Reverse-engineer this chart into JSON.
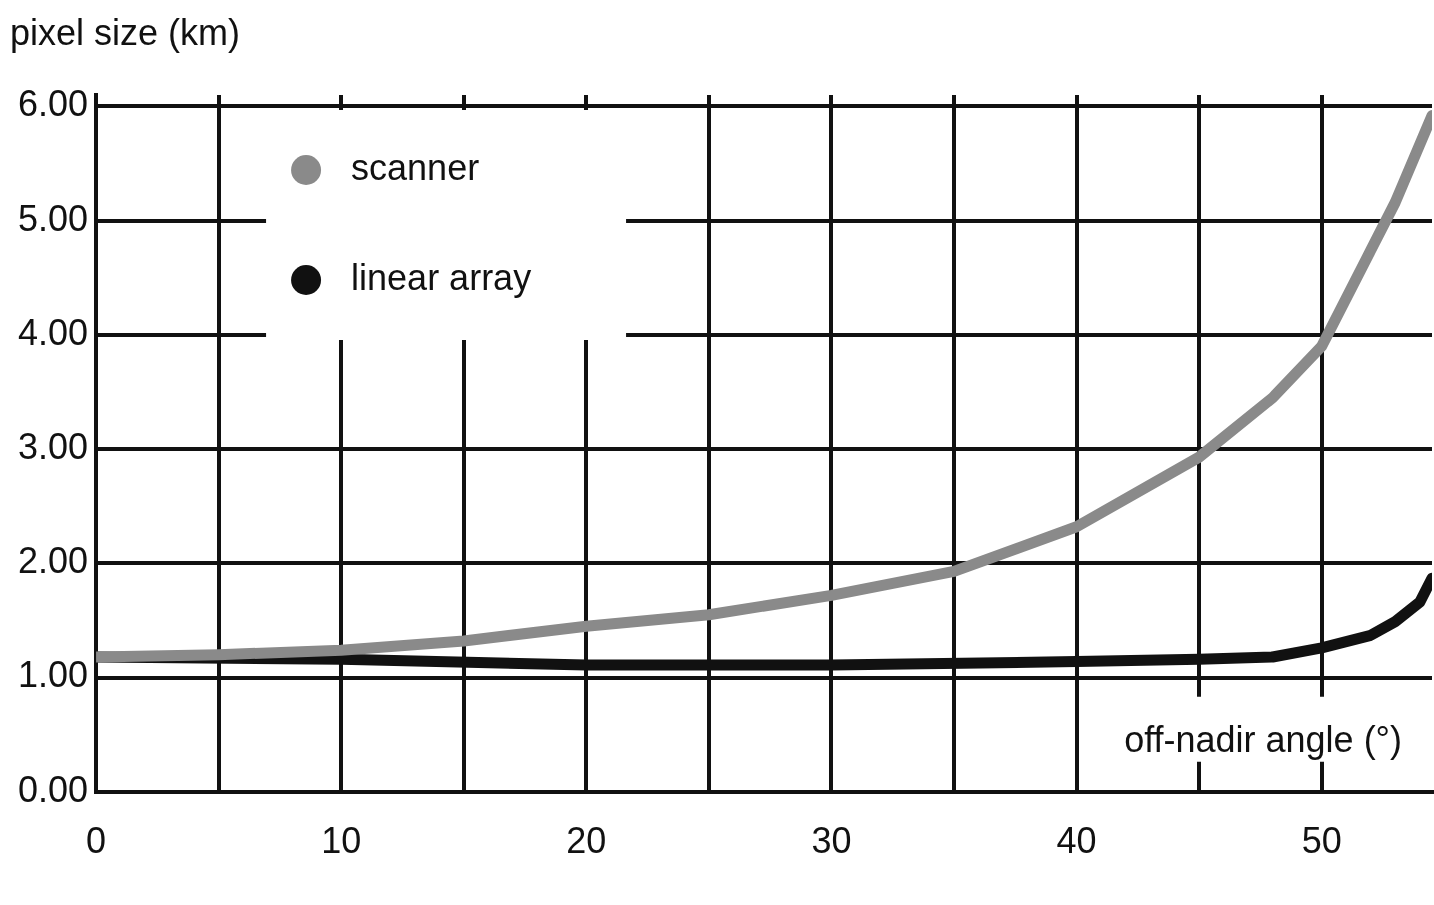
{
  "chart_data": {
    "type": "line",
    "ylabel": "pixel size (km)",
    "xlabel": "off-nadir angle (°)",
    "xlim": [
      0,
      54.5
    ],
    "ylim": [
      0,
      6.1
    ],
    "xticks": [
      0,
      {
        "value": 5,
        "label": null
      },
      10,
      {
        "value": 15,
        "label": null
      },
      20,
      {
        "value": 25,
        "label": null
      },
      30,
      {
        "value": 35,
        "label": null
      },
      40,
      {
        "value": 45,
        "label": null
      },
      50
    ],
    "yticks": [
      {
        "value": 0,
        "label": "0.00"
      },
      {
        "value": 1,
        "label": "1.00"
      },
      {
        "value": 2,
        "label": "2.00"
      },
      {
        "value": 3,
        "label": "3.00"
      },
      {
        "value": 4,
        "label": "4.00"
      },
      {
        "value": 5,
        "label": "5.00"
      },
      {
        "value": 6,
        "label": "6.00"
      }
    ],
    "grid": true,
    "legend": "top left",
    "marker": "none",
    "line_style": "solid",
    "series": [
      {
        "name": "scanner",
        "color": "#8a8a8a",
        "x": [
          0,
          5,
          10,
          15,
          20,
          25,
          30,
          35,
          40,
          45,
          48,
          50,
          52,
          53,
          54.5
        ],
        "values": [
          1.18,
          1.2,
          1.24,
          1.32,
          1.45,
          1.55,
          1.72,
          1.93,
          2.32,
          2.93,
          3.45,
          3.9,
          4.74,
          5.16,
          5.92
        ]
      },
      {
        "name": "linear array",
        "color": "#111111",
        "x": [
          0,
          10,
          20,
          30,
          40,
          45,
          48,
          50,
          52,
          53,
          54,
          54.5
        ],
        "values": [
          1.18,
          1.16,
          1.11,
          1.11,
          1.14,
          1.16,
          1.18,
          1.26,
          1.37,
          1.49,
          1.66,
          1.87
        ]
      }
    ]
  }
}
